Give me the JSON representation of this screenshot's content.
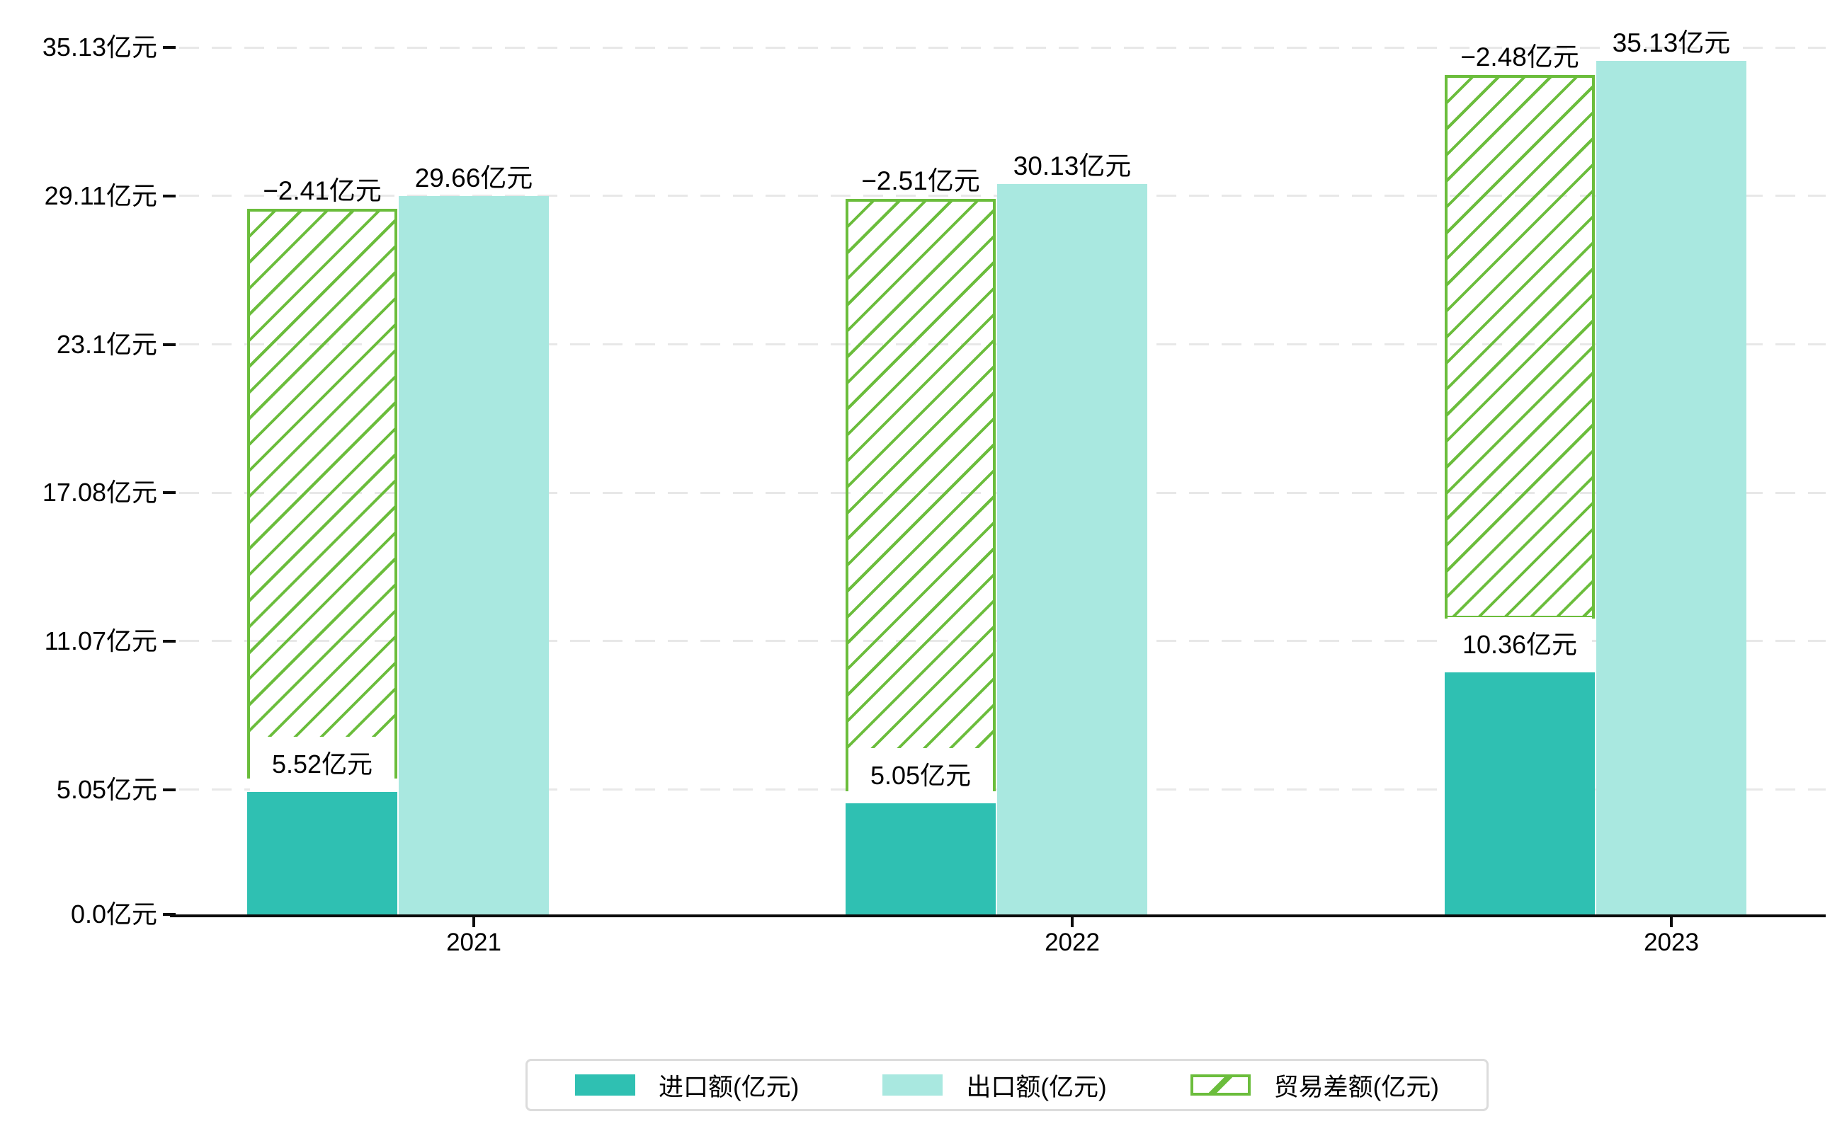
{
  "chart_data": {
    "type": "bar",
    "title": "",
    "categories": [
      "2021",
      "2022",
      "2023"
    ],
    "unit": "亿元",
    "series": [
      {
        "name": "进口额(亿元)",
        "values": [
          5.52,
          5.05,
          10.36
        ],
        "data_labels": [
          "5.52亿元",
          "5.05亿元",
          "10.36亿元"
        ],
        "style": "solid"
      },
      {
        "name": "出口额(亿元)",
        "values": [
          29.66,
          30.13,
          35.13
        ],
        "data_labels": [
          "29.66亿元",
          "30.13亿元",
          "35.13亿元"
        ],
        "style": "solid"
      },
      {
        "name": "贸易差额(亿元)",
        "values": [
          -2.41,
          -2.51,
          -2.48
        ],
        "data_labels": [
          "−2.41亿元",
          "−2.51亿元",
          "−2.48亿元"
        ],
        "style": "hatched",
        "drawn_span": [
          [
            5.5,
            28.6
          ],
          [
            5.0,
            29.0
          ],
          [
            12.0,
            34.0
          ]
        ]
      }
    ],
    "y_axis": {
      "tick_values": [
        0.0,
        5.05,
        11.07,
        17.08,
        23.1,
        29.11,
        35.13
      ],
      "tick_labels": [
        "0.0亿元",
        "5.05亿元",
        "11.07亿元",
        "17.08亿元",
        "23.1亿元",
        "29.11亿元",
        "35.13亿元"
      ],
      "range": [
        0,
        37.5
      ],
      "grid": "dashed"
    },
    "x_axis": {
      "tick_labels": [
        "2021",
        "2022",
        "2023"
      ]
    },
    "legend": {
      "position": "bottom-center",
      "items": [
        {
          "label": "进口额(亿元)",
          "swatch": "solid-teal"
        },
        {
          "label": "出口额(亿元)",
          "swatch": "solid-light-teal"
        },
        {
          "label": "贸易差额(亿元)",
          "swatch": "green-hatched"
        }
      ]
    }
  },
  "colors": {
    "import_bar": "#2fc0b2",
    "export_bar": "#a9e8e0",
    "balance_hatch": "#6bbd3c",
    "gridline": "#e8e8e8",
    "axis": "#0b0b0b",
    "text": "#000000",
    "label_box": "#ffffff",
    "legend_border": "#dcdcdc",
    "background": "#ffffff"
  }
}
